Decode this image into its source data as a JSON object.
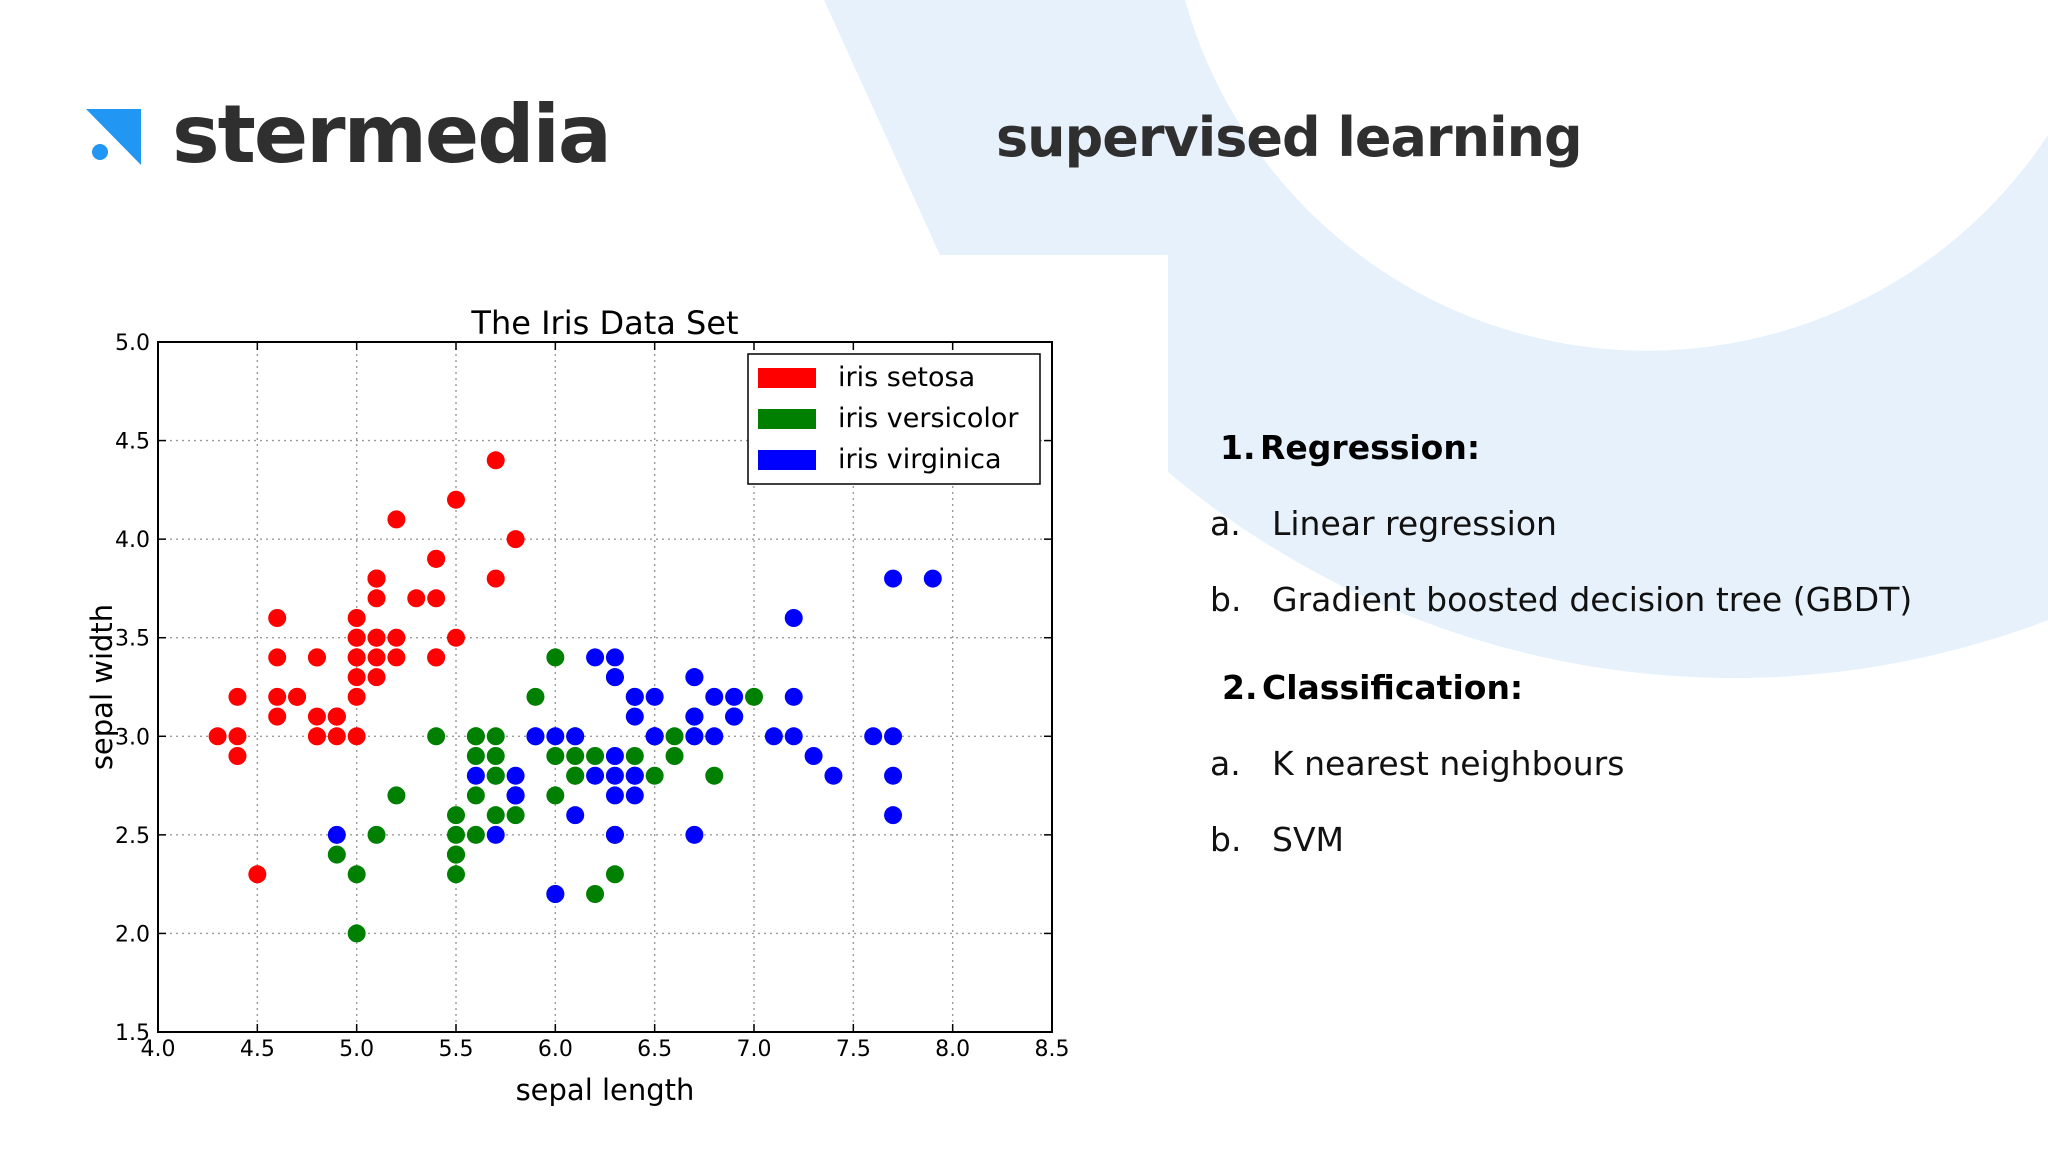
{
  "brand": {
    "name": "stermedia",
    "accent": "#2196f3",
    "text_color": "#2f2f2f",
    "bg_shape_color": "#e6f1fb"
  },
  "slide": {
    "title": "supervised learning"
  },
  "list": {
    "sections": [
      {
        "marker": "1.",
        "title": "Regression:",
        "items": [
          {
            "marker": "a.",
            "text": "Linear regression"
          },
          {
            "marker": "b.",
            "text": "Gradient boosted decision tree (GBDT)"
          }
        ]
      },
      {
        "marker": "2.",
        "title": "Classification:",
        "items": [
          {
            "marker": "a.",
            "text": "K nearest neighbours"
          },
          {
            "marker": "b.",
            "text": "SVM"
          }
        ]
      }
    ]
  },
  "chart_data": {
    "type": "scatter",
    "title": "The Iris Data Set",
    "xlabel": "sepal length",
    "ylabel": "sepal width",
    "xlim": [
      4.0,
      8.5
    ],
    "ylim": [
      1.5,
      5.0
    ],
    "xticks": [
      "4.0",
      "4.5",
      "5.0",
      "5.5",
      "6.0",
      "6.5",
      "7.0",
      "7.5",
      "8.0",
      "8.5"
    ],
    "yticks": [
      "1.5",
      "2.0",
      "2.5",
      "3.0",
      "3.5",
      "4.0",
      "4.5",
      "5.0"
    ],
    "grid": true,
    "legend_position": "top-right",
    "series": [
      {
        "name": "iris setosa",
        "color": "#ff0000",
        "points": [
          [
            5.1,
            3.5
          ],
          [
            4.9,
            3.0
          ],
          [
            4.7,
            3.2
          ],
          [
            4.6,
            3.1
          ],
          [
            5.0,
            3.6
          ],
          [
            5.4,
            3.9
          ],
          [
            4.6,
            3.4
          ],
          [
            5.0,
            3.4
          ],
          [
            4.4,
            2.9
          ],
          [
            4.9,
            3.1
          ],
          [
            5.4,
            3.7
          ],
          [
            4.8,
            3.4
          ],
          [
            4.8,
            3.0
          ],
          [
            4.3,
            3.0
          ],
          [
            5.8,
            4.0
          ],
          [
            5.7,
            4.4
          ],
          [
            5.4,
            3.9
          ],
          [
            5.1,
            3.5
          ],
          [
            5.7,
            3.8
          ],
          [
            5.1,
            3.8
          ],
          [
            5.4,
            3.4
          ],
          [
            5.1,
            3.7
          ],
          [
            4.6,
            3.6
          ],
          [
            5.1,
            3.3
          ],
          [
            4.8,
            3.4
          ],
          [
            5.0,
            3.0
          ],
          [
            5.0,
            3.4
          ],
          [
            5.2,
            3.5
          ],
          [
            5.2,
            3.4
          ],
          [
            4.7,
            3.2
          ],
          [
            4.8,
            3.1
          ],
          [
            5.4,
            3.4
          ],
          [
            5.2,
            4.1
          ],
          [
            5.5,
            4.2
          ],
          [
            4.9,
            3.1
          ],
          [
            5.0,
            3.2
          ],
          [
            5.5,
            3.5
          ],
          [
            4.9,
            3.1
          ],
          [
            4.4,
            3.0
          ],
          [
            5.1,
            3.4
          ],
          [
            5.0,
            3.5
          ],
          [
            4.5,
            2.3
          ],
          [
            4.4,
            3.2
          ],
          [
            5.0,
            3.5
          ],
          [
            5.1,
            3.8
          ],
          [
            4.8,
            3.0
          ],
          [
            5.1,
            3.8
          ],
          [
            4.6,
            3.2
          ],
          [
            5.3,
            3.7
          ],
          [
            5.0,
            3.3
          ]
        ]
      },
      {
        "name": "iris versicolor",
        "color": "#008000",
        "points": [
          [
            7.0,
            3.2
          ],
          [
            6.4,
            3.2
          ],
          [
            6.9,
            3.1
          ],
          [
            5.5,
            2.3
          ],
          [
            6.5,
            2.8
          ],
          [
            5.7,
            2.8
          ],
          [
            6.3,
            3.3
          ],
          [
            4.9,
            2.4
          ],
          [
            6.6,
            2.9
          ],
          [
            5.2,
            2.7
          ],
          [
            5.0,
            2.0
          ],
          [
            5.9,
            3.0
          ],
          [
            6.0,
            2.2
          ],
          [
            6.1,
            2.9
          ],
          [
            5.6,
            2.9
          ],
          [
            6.7,
            3.1
          ],
          [
            5.6,
            3.0
          ],
          [
            5.8,
            2.7
          ],
          [
            6.2,
            2.2
          ],
          [
            5.6,
            2.5
          ],
          [
            5.9,
            3.2
          ],
          [
            6.1,
            2.8
          ],
          [
            6.3,
            2.5
          ],
          [
            6.1,
            2.8
          ],
          [
            6.4,
            2.9
          ],
          [
            6.6,
            3.0
          ],
          [
            6.8,
            2.8
          ],
          [
            6.7,
            3.0
          ],
          [
            6.0,
            2.9
          ],
          [
            5.7,
            2.6
          ],
          [
            5.5,
            2.4
          ],
          [
            5.5,
            2.4
          ],
          [
            5.8,
            2.7
          ],
          [
            6.0,
            2.7
          ],
          [
            5.4,
            3.0
          ],
          [
            6.0,
            3.4
          ],
          [
            6.7,
            3.1
          ],
          [
            6.3,
            2.3
          ],
          [
            5.6,
            3.0
          ],
          [
            5.5,
            2.5
          ],
          [
            5.5,
            2.6
          ],
          [
            6.1,
            3.0
          ],
          [
            5.8,
            2.6
          ],
          [
            5.0,
            2.3
          ],
          [
            5.6,
            2.7
          ],
          [
            5.7,
            3.0
          ],
          [
            5.7,
            2.9
          ],
          [
            6.2,
            2.9
          ],
          [
            5.1,
            2.5
          ],
          [
            5.7,
            2.8
          ]
        ]
      },
      {
        "name": "iris virginica",
        "color": "#0000ff",
        "points": [
          [
            6.3,
            3.3
          ],
          [
            5.8,
            2.7
          ],
          [
            7.1,
            3.0
          ],
          [
            6.3,
            2.9
          ],
          [
            6.5,
            3.0
          ],
          [
            7.6,
            3.0
          ],
          [
            4.9,
            2.5
          ],
          [
            7.3,
            2.9
          ],
          [
            6.7,
            2.5
          ],
          [
            7.2,
            3.6
          ],
          [
            6.5,
            3.2
          ],
          [
            6.4,
            2.7
          ],
          [
            6.8,
            3.0
          ],
          [
            5.7,
            2.5
          ],
          [
            5.8,
            2.8
          ],
          [
            6.4,
            3.2
          ],
          [
            6.5,
            3.0
          ],
          [
            7.7,
            3.8
          ],
          [
            7.7,
            2.6
          ],
          [
            6.0,
            2.2
          ],
          [
            6.9,
            3.2
          ],
          [
            5.6,
            2.8
          ],
          [
            7.7,
            2.8
          ],
          [
            6.3,
            2.7
          ],
          [
            6.7,
            3.3
          ],
          [
            7.2,
            3.2
          ],
          [
            6.2,
            2.8
          ],
          [
            6.1,
            3.0
          ],
          [
            6.4,
            2.8
          ],
          [
            7.2,
            3.0
          ],
          [
            7.4,
            2.8
          ],
          [
            7.9,
            3.8
          ],
          [
            6.4,
            2.8
          ],
          [
            6.3,
            2.8
          ],
          [
            6.1,
            2.6
          ],
          [
            7.7,
            3.0
          ],
          [
            6.3,
            3.4
          ],
          [
            6.4,
            3.1
          ],
          [
            6.0,
            3.0
          ],
          [
            6.9,
            3.1
          ],
          [
            6.7,
            3.1
          ],
          [
            6.9,
            3.1
          ],
          [
            5.8,
            2.7
          ],
          [
            6.8,
            3.2
          ],
          [
            6.7,
            3.3
          ],
          [
            6.7,
            3.0
          ],
          [
            6.3,
            2.5
          ],
          [
            6.5,
            3.0
          ],
          [
            6.2,
            3.4
          ],
          [
            5.9,
            3.0
          ]
        ]
      }
    ]
  }
}
